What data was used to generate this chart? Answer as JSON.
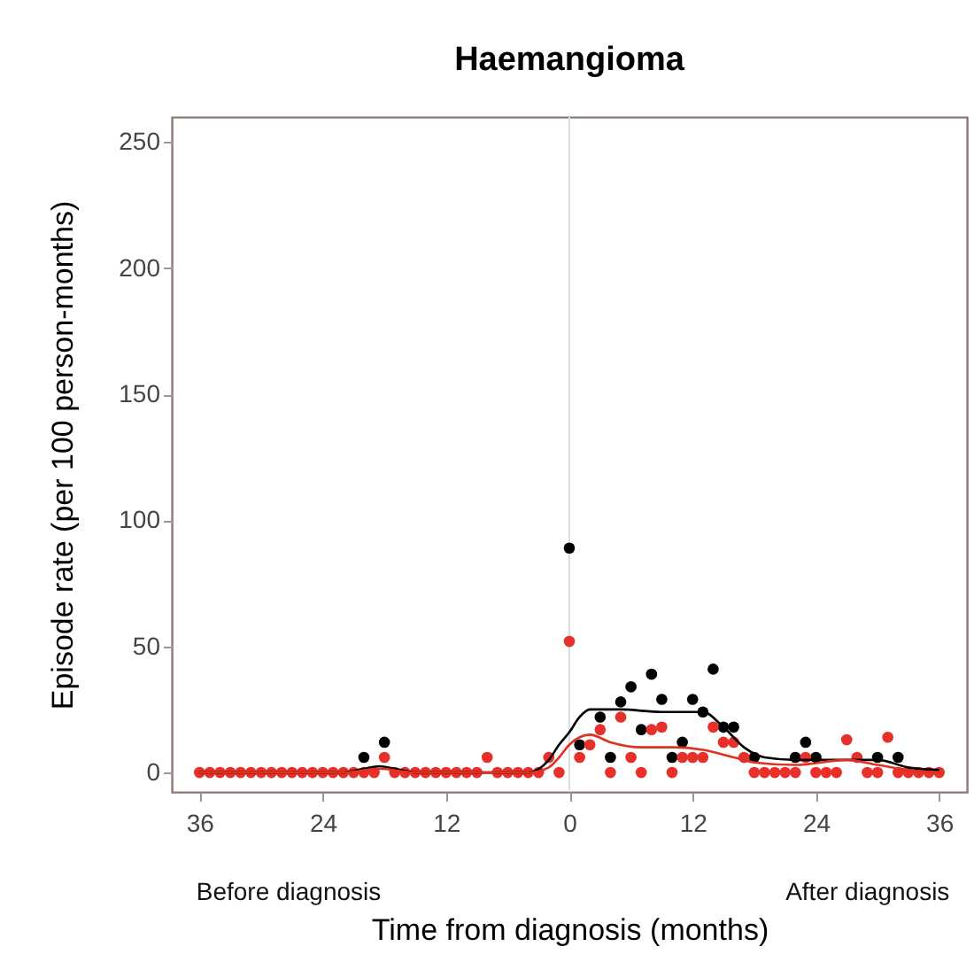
{
  "chart_data": {
    "type": "scatter",
    "title": "Haemangioma",
    "xlabel": "Time from diagnosis (months)",
    "ylabel": "Episode rate (per 100 person-months)",
    "annotations": [
      "Before diagnosis",
      "After diagnosis"
    ],
    "x": [
      -36,
      -35,
      -34,
      -33,
      -32,
      -31,
      -30,
      -29,
      -28,
      -27,
      -26,
      -25,
      -24,
      -23,
      -22,
      -21,
      -20,
      -19,
      -18,
      -17,
      -16,
      -15,
      -14,
      -13,
      -12,
      -11,
      -10,
      -9,
      -8,
      -7,
      -6,
      -5,
      -4,
      -3,
      -2,
      -1,
      0,
      1,
      2,
      3,
      4,
      5,
      6,
      7,
      8,
      9,
      10,
      11,
      12,
      13,
      14,
      15,
      16,
      17,
      18,
      19,
      20,
      21,
      22,
      23,
      24,
      25,
      26,
      27,
      28,
      29,
      30,
      31,
      32,
      33,
      34,
      35,
      36
    ],
    "series": [
      {
        "color": "#000000",
        "values": [
          null,
          null,
          null,
          null,
          null,
          null,
          null,
          null,
          null,
          null,
          null,
          null,
          null,
          null,
          null,
          null,
          6,
          null,
          12,
          null,
          null,
          null,
          null,
          null,
          null,
          null,
          null,
          null,
          null,
          null,
          null,
          null,
          null,
          null,
          null,
          null,
          89,
          11,
          null,
          22,
          6,
          28,
          34,
          17,
          39,
          29,
          6,
          12,
          29,
          24,
          41,
          18,
          18,
          null,
          6,
          null,
          null,
          null,
          6,
          12,
          6,
          null,
          null,
          null,
          null,
          null,
          6,
          null,
          6,
          null,
          null,
          null,
          null
        ]
      },
      {
        "color": "#e8302a",
        "values": [
          0,
          0,
          0,
          0,
          0,
          0,
          0,
          0,
          0,
          0,
          0,
          0,
          0,
          0,
          0,
          0,
          0,
          0,
          6,
          0,
          0,
          0,
          0,
          0,
          0,
          0,
          0,
          0,
          6,
          0,
          0,
          0,
          0,
          0,
          6,
          0,
          52,
          6,
          11,
          17,
          0,
          22,
          6,
          0,
          17,
          18,
          0,
          6,
          6,
          6,
          18,
          12,
          12,
          6,
          0,
          0,
          0,
          0,
          0,
          6,
          0,
          0,
          0,
          13,
          6,
          0,
          0,
          14,
          0,
          0,
          0,
          0,
          0
        ]
      },
      {
        "type": "line",
        "marker": "none",
        "color": "#000000",
        "x": [
          -36,
          -22,
          -20,
          -18.5,
          -17,
          -15,
          -4,
          -2,
          -1,
          0,
          1,
          2,
          5,
          9,
          13,
          15,
          17,
          19,
          22,
          27,
          30,
          33,
          36
        ],
        "values": [
          0,
          0,
          1.5,
          2.5,
          1.5,
          0,
          0,
          5,
          11,
          16,
          22,
          25,
          25,
          24,
          24,
          18,
          10,
          6,
          5,
          5,
          5,
          2,
          1
        ]
      },
      {
        "type": "line",
        "marker": "none",
        "color": "#e03020",
        "x": [
          -36,
          -22,
          -18.5,
          -15,
          -4,
          -2,
          -1,
          0,
          2,
          4,
          7,
          10,
          13,
          16,
          18,
          22,
          27,
          30,
          33,
          36
        ],
        "values": [
          0,
          0,
          1.5,
          0,
          0,
          2,
          6,
          11,
          15,
          12,
          10,
          10,
          9,
          6,
          4,
          3,
          5,
          3,
          1,
          0
        ]
      }
    ],
    "marker": "circle",
    "line_style": "solid",
    "xlim": [
      -38.7,
      38.7
    ],
    "xticks": [
      {
        "value": -36,
        "label": "36"
      },
      {
        "value": -24,
        "label": "24"
      },
      {
        "value": -12,
        "label": "12"
      },
      0,
      12,
      24,
      36
    ],
    "ylim": [
      -7.7,
      260
    ],
    "yticks": [
      0,
      50,
      100,
      150,
      200,
      250
    ],
    "ref_lines": [
      {
        "axis": "x",
        "value": 0,
        "color": "#d8dde4"
      }
    ],
    "grid": false,
    "legend": false
  }
}
